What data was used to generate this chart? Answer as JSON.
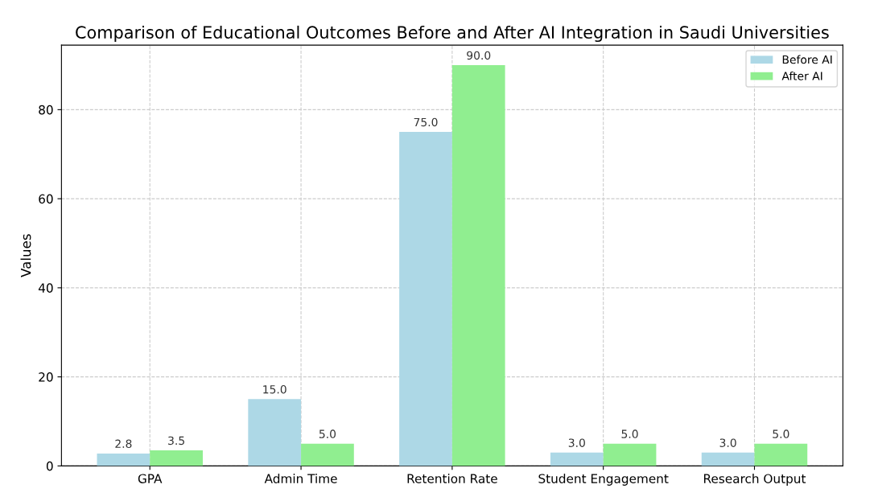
{
  "chart_data": {
    "type": "bar",
    "title": "Comparison of Educational Outcomes Before and After AI Integration in Saudi Universities",
    "ylabel": "Values",
    "categories": [
      "GPA",
      "Admin Time",
      "Retention Rate",
      "Student Engagement",
      "Research Output"
    ],
    "series": [
      {
        "name": "Before AI",
        "color": "#add8e6",
        "values": [
          2.8,
          15,
          75,
          3,
          3
        ],
        "value_labels": [
          "2.8",
          "15.0",
          "75.0",
          "3.0",
          "3.0"
        ]
      },
      {
        "name": "After AI",
        "color": "#90ee90",
        "values": [
          3.5,
          5,
          90,
          5,
          5
        ],
        "value_labels": [
          "3.5",
          "5.0",
          "90.0",
          "5.0",
          "5.0"
        ]
      }
    ],
    "ylim": [
      0,
      94.5
    ],
    "yticks": [
      0,
      20,
      40,
      60,
      80
    ],
    "grid": true,
    "legend": "top right"
  }
}
